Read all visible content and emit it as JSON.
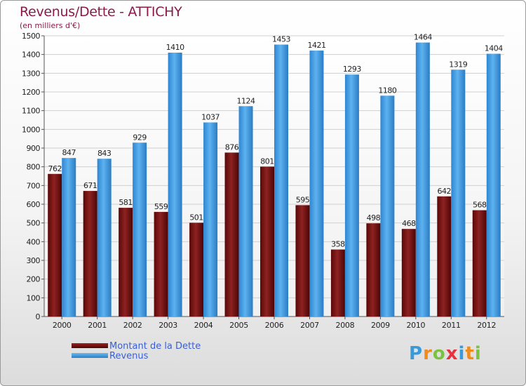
{
  "chart_data": {
    "type": "bar",
    "title": "Revenus/Dette - ATTICHY",
    "subtitle": "(en milliers d'€)",
    "categories": [
      "2000",
      "2001",
      "2002",
      "2003",
      "2004",
      "2005",
      "2006",
      "2007",
      "2008",
      "2009",
      "2010",
      "2011",
      "2012"
    ],
    "series": [
      {
        "name": "Montant de la Dette",
        "color": "#7a1414",
        "values": [
          762,
          671,
          581,
          559,
          501,
          876,
          801,
          595,
          358,
          498,
          468,
          642,
          568
        ]
      },
      {
        "name": "Revenus",
        "color": "#3b9ae6",
        "values": [
          847,
          843,
          929,
          1410,
          1037,
          1124,
          1453,
          1421,
          1293,
          1180,
          1464,
          1319,
          1404
        ]
      }
    ],
    "ylim": [
      0,
      1500
    ],
    "yticks": [
      0,
      100,
      200,
      300,
      400,
      500,
      600,
      700,
      800,
      900,
      1000,
      1100,
      1200,
      1300,
      1400,
      1500
    ],
    "grid": true,
    "legend_position": "bottom-left"
  },
  "brand": {
    "letters": [
      "P",
      "r",
      "o",
      "x",
      "i",
      "t",
      "i"
    ],
    "colors": [
      "#3a9ad9",
      "#f08a1c",
      "#7cc242",
      "#e8313a",
      "#3a9ad9",
      "#f08a1c",
      "#7cc242"
    ]
  }
}
